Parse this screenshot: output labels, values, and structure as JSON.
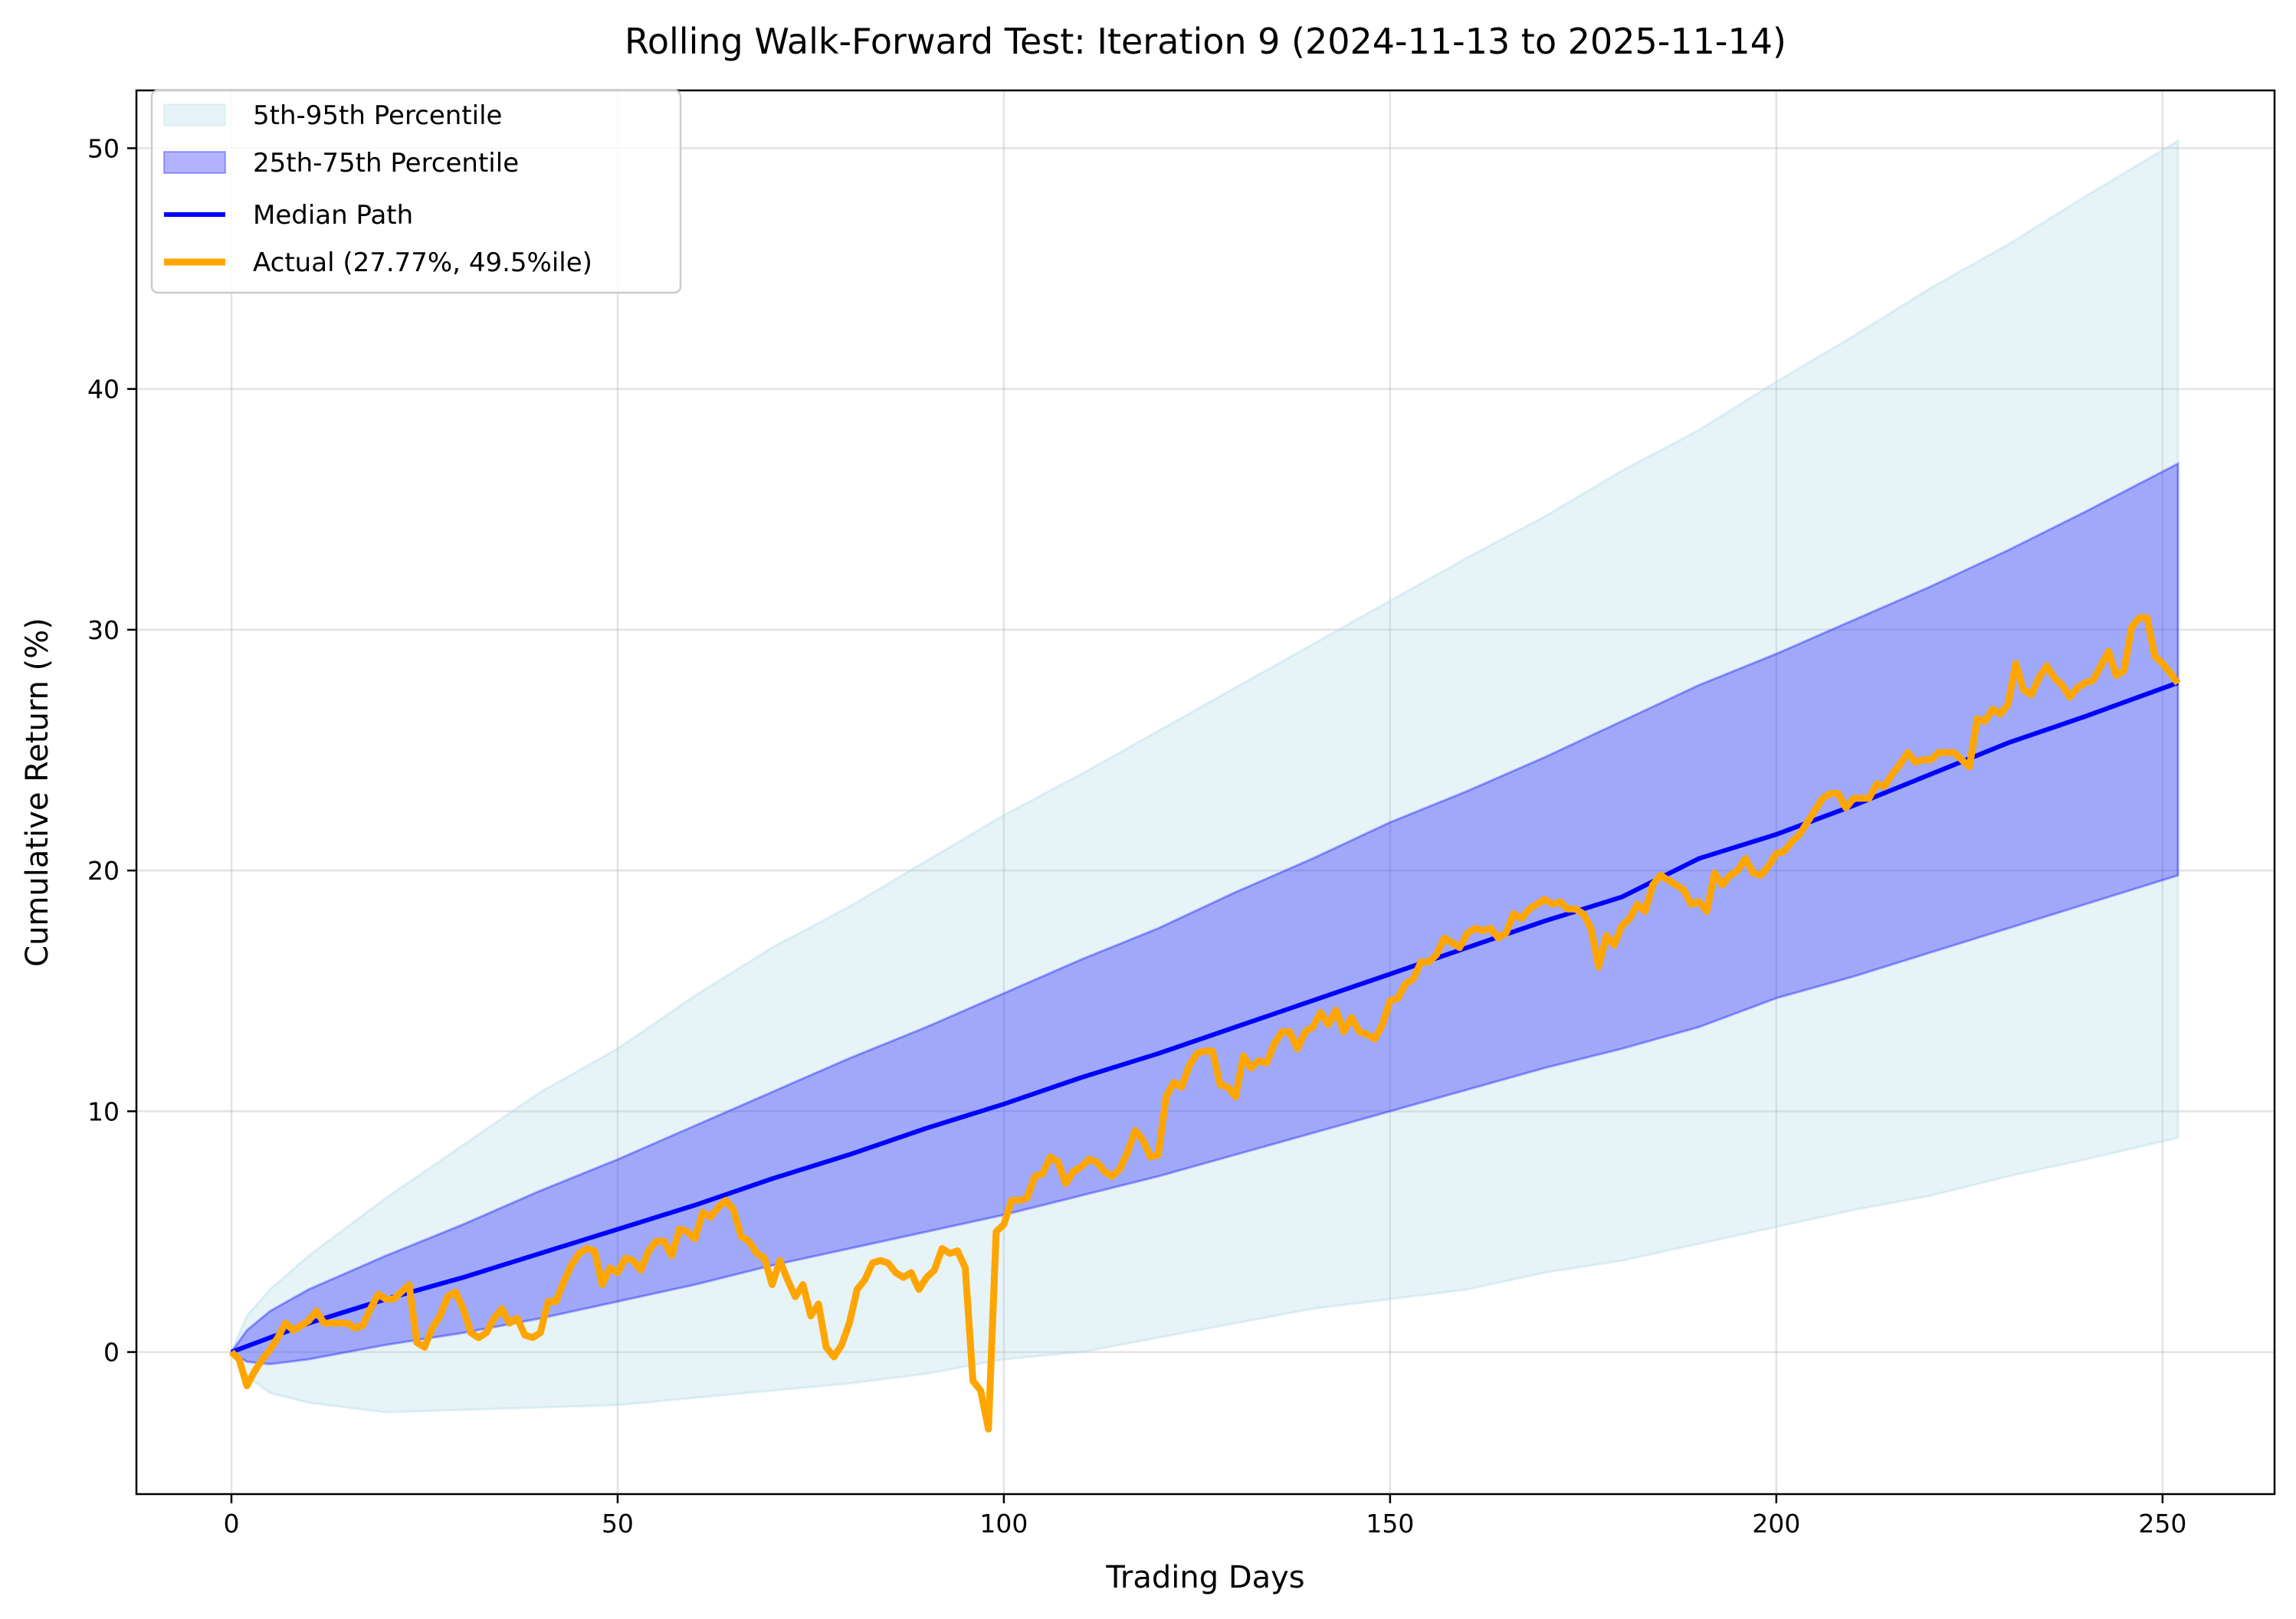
{
  "chart_data": {
    "type": "line",
    "title": "Rolling Walk-Forward Test: Iteration 9 (2024-11-13 to 2025-11-14)",
    "xlabel": "Trading Days",
    "ylabel": "Cumulative Return (%)",
    "xlim": [
      -12.3,
      264.5
    ],
    "ylim": [
      -5.9,
      52.4
    ],
    "xticks": [
      0,
      50,
      100,
      150,
      200,
      250
    ],
    "yticks": [
      0,
      10,
      20,
      30,
      40,
      50
    ],
    "grid": true,
    "legend_placement": "upper-left",
    "colors": {
      "band_5_95": "#add8e6",
      "band_25_75": "#0000ff",
      "median": "#0000ff",
      "actual": "#ffa500"
    },
    "legend": [
      "5th-95th Percentile",
      "25th-75th Percentile",
      "Median Path",
      "Actual (27.77%, 49.5%ile)"
    ],
    "band_days": [
      0,
      2,
      5,
      10,
      20,
      30,
      40,
      50,
      60,
      70,
      80,
      90,
      100,
      110,
      120,
      130,
      140,
      150,
      160,
      170,
      180,
      190,
      200,
      210,
      220,
      230,
      240,
      252
    ],
    "p5": [
      0,
      -1.0,
      -1.7,
      -2.1,
      -2.5,
      -2.4,
      -2.3,
      -2.2,
      -1.9,
      -1.6,
      -1.3,
      -0.9,
      -0.3,
      0,
      0.6,
      1.2,
      1.8,
      2.2,
      2.6,
      3.3,
      3.8,
      4.5,
      5.2,
      5.9,
      6.5,
      7.3,
      8.0,
      8.9
    ],
    "p95": [
      0,
      1.5,
      2.6,
      4.0,
      6.4,
      8.6,
      10.8,
      12.6,
      14.8,
      16.8,
      18.5,
      20.4,
      22.3,
      24.0,
      25.8,
      27.6,
      29.4,
      31.2,
      33.0,
      34.7,
      36.6,
      38.3,
      40.3,
      42.2,
      44.2,
      46.0,
      48.0,
      50.3
    ],
    "p25": [
      0,
      -0.4,
      -0.5,
      -0.3,
      0.3,
      0.8,
      1.4,
      2.1,
      2.8,
      3.6,
      4.3,
      5.0,
      5.7,
      6.5,
      7.3,
      8.2,
      9.1,
      10.0,
      10.9,
      11.8,
      12.6,
      13.5,
      14.7,
      15.6,
      16.6,
      17.6,
      18.6,
      19.8
    ],
    "p75": [
      0,
      0.9,
      1.7,
      2.6,
      4.0,
      5.3,
      6.7,
      8.0,
      9.4,
      10.8,
      12.2,
      13.5,
      14.9,
      16.3,
      17.6,
      19.1,
      20.5,
      22.0,
      23.3,
      24.7,
      26.2,
      27.7,
      29.0,
      30.4,
      31.8,
      33.3,
      34.9,
      36.9
    ],
    "median_days": [
      0,
      10,
      20,
      30,
      40,
      50,
      60,
      70,
      80,
      90,
      100,
      110,
      120,
      130,
      140,
      150,
      160,
      170,
      180,
      190,
      200,
      210,
      220,
      230,
      240,
      252
    ],
    "median": [
      0,
      1.2,
      2.2,
      3.1,
      4.1,
      5.1,
      6.1,
      7.2,
      8.2,
      9.3,
      10.3,
      11.4,
      12.4,
      13.5,
      14.6,
      15.7,
      16.8,
      17.9,
      18.9,
      20.5,
      21.5,
      22.7,
      24.0,
      25.3,
      26.4,
      27.8
    ],
    "actual": [
      0,
      -0.3,
      -1.4,
      -0.8,
      -0.3,
      0.1,
      0.6,
      1.2,
      0.9,
      1.1,
      1.3,
      1.7,
      1.2,
      1.2,
      1.2,
      1.2,
      1.0,
      1.1,
      1.8,
      2.4,
      2.2,
      2.2,
      2.5,
      2.8,
      0.4,
      0.2,
      1.0,
      1.5,
      2.3,
      2.5,
      1.8,
      0.8,
      0.6,
      0.8,
      1.4,
      1.8,
      1.2,
      1.4,
      0.7,
      0.6,
      0.8,
      2.1,
      2.1,
      2.9,
      3.6,
      4.1,
      4.3,
      4.2,
      2.8,
      3.5,
      3.3,
      3.9,
      3.8,
      3.4,
      4.2,
      4.6,
      4.6,
      4.0,
      5.1,
      5.0,
      4.7,
      5.8,
      5.6,
      6.0,
      6.3,
      5.9,
      4.8,
      4.6,
      4.1,
      3.9,
      2.8,
      3.8,
      3.0,
      2.3,
      2.8,
      1.5,
      2.0,
      0.2,
      -0.2,
      0.3,
      1.2,
      2.6,
      3.0,
      3.7,
      3.8,
      3.7,
      3.3,
      3.1,
      3.3,
      2.6,
      3.1,
      3.4,
      4.3,
      4.1,
      4.2,
      3.5,
      -1.2,
      -1.6,
      -3.2,
      5.0,
      5.3,
      6.3,
      6.3,
      6.4,
      7.3,
      7.4,
      8.1,
      7.9,
      7.0,
      7.5,
      7.7,
      8.0,
      7.9,
      7.5,
      7.3,
      7.6,
      8.3,
      9.2,
      8.8,
      8.1,
      8.2,
      10.6,
      11.2,
      11.0,
      11.9,
      12.4,
      12.5,
      12.5,
      11.1,
      11.0,
      10.6,
      12.3,
      11.8,
      12.1,
      12.0,
      12.8,
      13.3,
      13.3,
      12.6,
      13.3,
      13.5,
      14.1,
      13.6,
      14.2,
      13.3,
      13.9,
      13.3,
      13.2,
      13.0,
      13.6,
      14.6,
      14.7,
      15.3,
      15.5,
      16.2,
      16.2,
      16.5,
      17.2,
      17.0,
      16.8,
      17.4,
      17.6,
      17.5,
      17.6,
      17.2,
      17.4,
      18.2,
      18.0,
      18.4,
      18.6,
      18.8,
      18.6,
      18.7,
      18.4,
      18.4,
      18.2,
      17.6,
      16.0,
      17.3,
      16.9,
      17.7,
      18.0,
      18.6,
      18.3,
      19.4,
      19.8,
      19.6,
      19.4,
      19.2,
      18.6,
      18.7,
      18.3,
      19.9,
      19.4,
      19.8,
      20.0,
      20.5,
      19.9,
      19.8,
      20.2,
      20.7,
      20.8,
      21.2,
      21.5,
      22.0,
      22.5,
      23.0,
      23.2,
      23.2,
      22.6,
      23.0,
      23.0,
      23.0,
      23.6,
      23.5,
      24.0,
      24.4,
      24.9,
      24.5,
      24.6,
      24.6,
      24.9,
      24.9,
      24.9,
      24.6,
      24.3,
      26.3,
      26.2,
      26.7,
      26.5,
      26.9,
      28.6,
      27.5,
      27.3,
      28.0,
      28.5,
      28.0,
      27.7,
      27.2,
      27.6,
      27.8,
      27.9,
      28.5,
      29.1,
      28.1,
      28.3,
      30.1,
      30.5,
      30.5,
      28.9,
      28.6,
      28.2,
      27.77
    ]
  }
}
